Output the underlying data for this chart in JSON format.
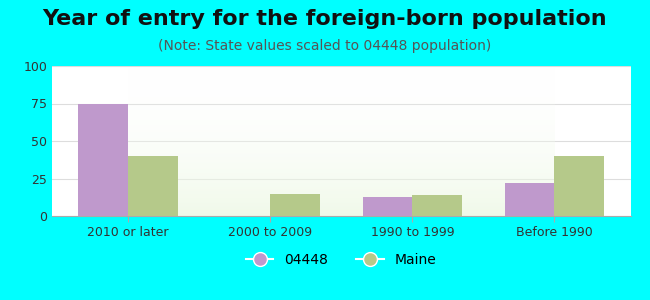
{
  "title": "Year of entry for the foreign-born population",
  "subtitle": "(Note: State values scaled to 04448 population)",
  "categories": [
    "2010 or later",
    "2000 to 2009",
    "1990 to 1999",
    "Before 1990"
  ],
  "series_04448": [
    75,
    0,
    13,
    22
  ],
  "series_maine": [
    40,
    15,
    14,
    40
  ],
  "color_04448": "#bf99cc",
  "color_maine": "#b5c98a",
  "background_color": "#00ffff",
  "chart_bg_color": "#ffffff",
  "ylim": [
    0,
    100
  ],
  "yticks": [
    0,
    25,
    50,
    75,
    100
  ],
  "legend_04448": "04448",
  "legend_maine": "Maine",
  "title_fontsize": 16,
  "subtitle_fontsize": 10,
  "bar_width": 0.35
}
